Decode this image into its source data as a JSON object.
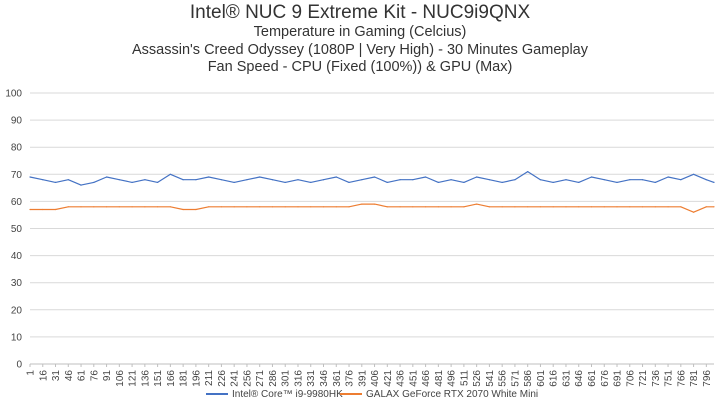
{
  "chart_data": {
    "type": "line",
    "title": "Intel® NUC 9 Extreme Kit - NUC9i9QNX",
    "subtitles": [
      "Temperature in Gaming (Celcius)",
      "Assassin's Creed Odyssey (1080P | Very High) - 30 Minutes Gameplay",
      "Fan Speed - CPU (Fixed (100%)) & GPU (Max)"
    ],
    "xlabel": "",
    "ylabel": "",
    "xlim": [
      1,
      805
    ],
    "ylim": [
      0,
      100
    ],
    "y_ticks": [
      0,
      10,
      20,
      30,
      40,
      50,
      60,
      70,
      80,
      90,
      100
    ],
    "x_tick_labels": [
      "1",
      "16",
      "31",
      "46",
      "61",
      "76",
      "91",
      "106",
      "121",
      "136",
      "151",
      "166",
      "181",
      "196",
      "211",
      "226",
      "241",
      "256",
      "271",
      "286",
      "301",
      "316",
      "331",
      "346",
      "361",
      "376",
      "391",
      "406",
      "421",
      "436",
      "451",
      "466",
      "481",
      "496",
      "511",
      "526",
      "541",
      "556",
      "571",
      "586",
      "601",
      "616",
      "631",
      "646",
      "661",
      "676",
      "691",
      "706",
      "721",
      "736",
      "751",
      "766",
      "781",
      "796"
    ],
    "grid": true,
    "legend_position": "bottom",
    "series": [
      {
        "name": "Intel® Core™ i9-9980HK",
        "color": "#4472c4",
        "x": [
          1,
          16,
          31,
          46,
          61,
          76,
          91,
          106,
          121,
          136,
          151,
          166,
          181,
          196,
          211,
          226,
          241,
          256,
          271,
          286,
          301,
          316,
          331,
          346,
          361,
          376,
          391,
          406,
          421,
          436,
          451,
          466,
          481,
          496,
          511,
          526,
          541,
          556,
          571,
          586,
          601,
          616,
          631,
          646,
          661,
          676,
          691,
          706,
          721,
          736,
          751,
          766,
          781,
          796,
          805
        ],
        "values": [
          69,
          68,
          67,
          68,
          66,
          67,
          69,
          68,
          67,
          68,
          67,
          70,
          68,
          68,
          69,
          68,
          67,
          68,
          69,
          68,
          67,
          68,
          67,
          68,
          69,
          67,
          68,
          69,
          67,
          68,
          68,
          69,
          67,
          68,
          67,
          69,
          68,
          67,
          68,
          71,
          68,
          67,
          68,
          67,
          69,
          68,
          67,
          68,
          68,
          67,
          69,
          68,
          70,
          68,
          67
        ]
      },
      {
        "name": "GALAX GeForce RTX 2070 White Mini",
        "color": "#ed7d31",
        "x": [
          1,
          16,
          31,
          46,
          61,
          76,
          91,
          106,
          121,
          136,
          151,
          166,
          181,
          196,
          211,
          226,
          241,
          256,
          271,
          286,
          301,
          316,
          331,
          346,
          361,
          376,
          391,
          406,
          421,
          436,
          451,
          466,
          481,
          496,
          511,
          526,
          541,
          556,
          571,
          586,
          601,
          616,
          631,
          646,
          661,
          676,
          691,
          706,
          721,
          736,
          751,
          766,
          781,
          796,
          805
        ],
        "values": [
          57,
          57,
          57,
          58,
          58,
          58,
          58,
          58,
          58,
          58,
          58,
          58,
          57,
          57,
          58,
          58,
          58,
          58,
          58,
          58,
          58,
          58,
          58,
          58,
          58,
          58,
          59,
          59,
          58,
          58,
          58,
          58,
          58,
          58,
          58,
          59,
          58,
          58,
          58,
          58,
          58,
          58,
          58,
          58,
          58,
          58,
          58,
          58,
          58,
          58,
          58,
          58,
          56,
          58,
          58
        ]
      }
    ]
  }
}
